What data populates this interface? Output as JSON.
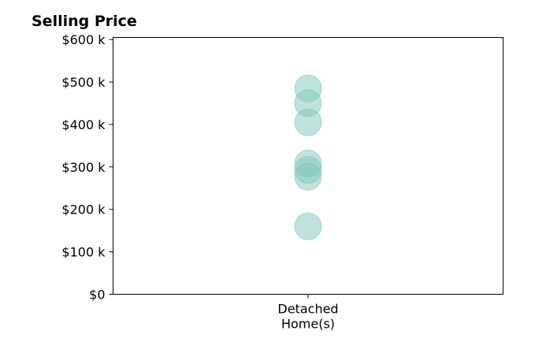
{
  "chart_data": {
    "type": "scatter",
    "title": "Selling Price",
    "categories": [
      "Detached Home(s)"
    ],
    "category_label_lines": [
      "Detached",
      "Home(s)"
    ],
    "series": [
      {
        "category": "Detached Home(s)",
        "values": [
          485000,
          450000,
          405000,
          308000,
          293000,
          277000,
          160000
        ]
      }
    ],
    "ylim": [
      0,
      605000
    ],
    "yticks": [
      {
        "value": 0,
        "label": "$0"
      },
      {
        "value": 100000,
        "label": "$100 k"
      },
      {
        "value": 200000,
        "label": "$200 k"
      },
      {
        "value": 300000,
        "label": "$300 k"
      },
      {
        "value": 400000,
        "label": "$400 k"
      },
      {
        "value": 500000,
        "label": "$500 k"
      },
      {
        "value": 600000,
        "label": "$600 k"
      }
    ],
    "marker_color": "#7fc6bc",
    "marker_edge_color": "#7fc6bc",
    "grid": false,
    "xlabel": "",
    "ylabel": ""
  }
}
